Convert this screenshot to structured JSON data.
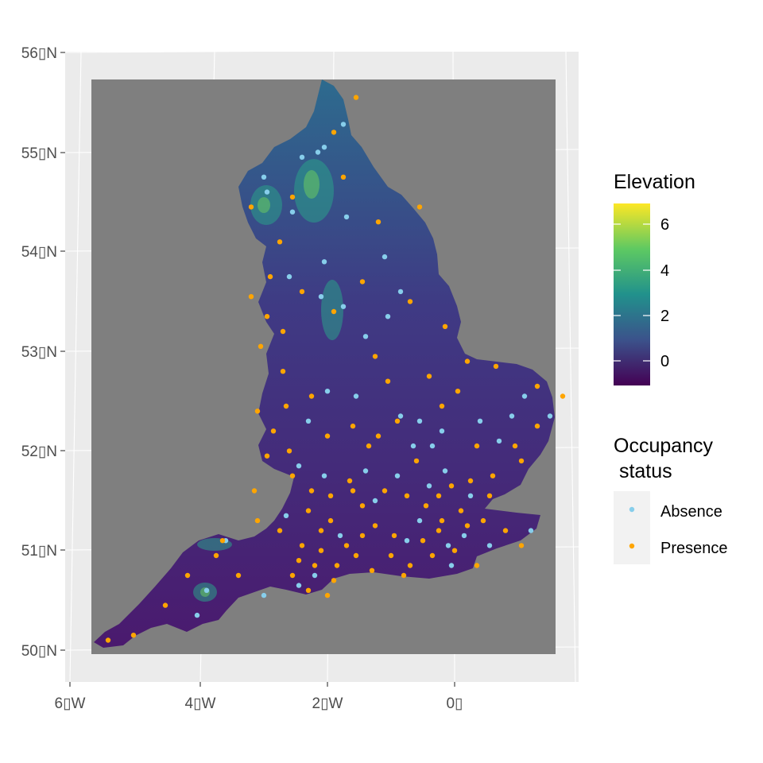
{
  "colors": {
    "panel_background": "#ebebeb",
    "grid": "#ffffff",
    "raster_nodata": "#7f7f7f",
    "absence": "#87ceeb",
    "presence": "#ffa500",
    "axis_text": "#4d4d4d",
    "legend_key_background": "#f2f2f2"
  },
  "axes": {
    "lat_ticks": [
      "56▯N",
      "55▯N",
      "54▯N",
      "53▯N",
      "52▯N",
      "51▯N",
      "50▯N"
    ],
    "lon_ticks": [
      "6▯W",
      "4▯W",
      "2▯W",
      "0▯"
    ]
  },
  "elevation_legend": {
    "title": "Elevation",
    "tick_labels": [
      "6",
      "4",
      "2",
      "0"
    ],
    "range": [
      -1,
      7
    ],
    "palette": "viridis",
    "gradient_stops": [
      "#440154",
      "#3b528b",
      "#21918c",
      "#5ec962",
      "#fde725"
    ]
  },
  "occupancy_legend": {
    "title_line1": "Occupancy",
    "title_line2": " status",
    "items": [
      {
        "label": "Absence",
        "color": "#87ceeb"
      },
      {
        "label": "Presence",
        "color": "#ffa500"
      }
    ]
  },
  "occurrence_points": {
    "absence": [
      [
        -1.75,
        55.28
      ],
      [
        -2.05,
        55.05
      ],
      [
        -2.15,
        55.0
      ],
      [
        -2.4,
        54.95
      ],
      [
        -3.0,
        54.75
      ],
      [
        -2.95,
        54.6
      ],
      [
        -2.55,
        54.4
      ],
      [
        -1.7,
        54.35
      ],
      [
        -2.05,
        53.9
      ],
      [
        -2.6,
        53.75
      ],
      [
        -2.1,
        53.55
      ],
      [
        -1.75,
        53.45
      ],
      [
        -1.4,
        53.15
      ],
      [
        -1.05,
        53.35
      ],
      [
        -0.85,
        53.6
      ],
      [
        -1.1,
        53.95
      ],
      [
        -2.0,
        52.6
      ],
      [
        -2.3,
        52.3
      ],
      [
        -1.55,
        52.55
      ],
      [
        -0.85,
        52.35
      ],
      [
        -0.55,
        52.3
      ],
      [
        -0.2,
        52.2
      ],
      [
        0.4,
        52.3
      ],
      [
        0.9,
        52.35
      ],
      [
        1.1,
        52.55
      ],
      [
        -0.35,
        52.05
      ],
      [
        -0.15,
        51.8
      ],
      [
        -0.4,
        51.65
      ],
      [
        -0.9,
        51.75
      ],
      [
        -1.4,
        51.8
      ],
      [
        -2.05,
        51.75
      ],
      [
        -2.45,
        51.85
      ],
      [
        -0.55,
        51.3
      ],
      [
        -0.75,
        51.1
      ],
      [
        -0.1,
        51.05
      ],
      [
        0.15,
        51.15
      ],
      [
        0.55,
        51.05
      ],
      [
        1.2,
        51.2
      ],
      [
        -2.45,
        50.65
      ],
      [
        -3.0,
        50.55
      ],
      [
        -3.9,
        50.6
      ],
      [
        -4.05,
        50.35
      ],
      [
        -3.6,
        51.1
      ],
      [
        -2.65,
        51.35
      ],
      [
        1.5,
        52.35
      ],
      [
        0.25,
        51.55
      ],
      [
        -1.25,
        51.5
      ],
      [
        -0.05,
        50.85
      ],
      [
        -2.2,
        50.75
      ],
      [
        -1.8,
        51.15
      ],
      [
        0.7,
        52.1
      ],
      [
        -0.65,
        52.05
      ]
    ],
    "presence": [
      [
        -1.55,
        55.55
      ],
      [
        -1.9,
        55.2
      ],
      [
        -1.75,
        54.75
      ],
      [
        -2.55,
        54.55
      ],
      [
        -3.2,
        54.45
      ],
      [
        -2.75,
        54.1
      ],
      [
        -1.2,
        54.3
      ],
      [
        -0.55,
        54.45
      ],
      [
        -2.9,
        53.75
      ],
      [
        -2.4,
        53.6
      ],
      [
        -1.9,
        53.4
      ],
      [
        -1.45,
        53.7
      ],
      [
        -0.7,
        53.5
      ],
      [
        -0.15,
        53.25
      ],
      [
        -2.95,
        53.35
      ],
      [
        -3.05,
        53.05
      ],
      [
        -2.7,
        52.8
      ],
      [
        -2.25,
        52.55
      ],
      [
        -1.25,
        52.95
      ],
      [
        -0.4,
        52.75
      ],
      [
        0.2,
        52.9
      ],
      [
        0.65,
        52.85
      ],
      [
        1.3,
        52.65
      ],
      [
        1.7,
        52.55
      ],
      [
        -2.65,
        52.45
      ],
      [
        -2.0,
        52.15
      ],
      [
        -1.6,
        52.25
      ],
      [
        -1.2,
        52.15
      ],
      [
        -0.9,
        52.3
      ],
      [
        -0.2,
        52.45
      ],
      [
        0.35,
        52.05
      ],
      [
        0.95,
        52.05
      ],
      [
        1.3,
        52.25
      ],
      [
        -2.95,
        51.95
      ],
      [
        -2.55,
        51.75
      ],
      [
        -2.25,
        51.6
      ],
      [
        -1.95,
        51.55
      ],
      [
        -1.65,
        51.7
      ],
      [
        -1.45,
        51.45
      ],
      [
        -1.1,
        51.6
      ],
      [
        -0.75,
        51.55
      ],
      [
        -0.45,
        51.45
      ],
      [
        -0.2,
        51.3
      ],
      [
        0.1,
        51.4
      ],
      [
        0.45,
        51.3
      ],
      [
        0.8,
        51.2
      ],
      [
        1.05,
        51.05
      ],
      [
        -3.1,
        51.3
      ],
      [
        -2.75,
        51.2
      ],
      [
        -2.4,
        51.05
      ],
      [
        -2.1,
        51.0
      ],
      [
        -1.85,
        50.85
      ],
      [
        -1.55,
        50.95
      ],
      [
        -1.3,
        50.8
      ],
      [
        -1.0,
        50.95
      ],
      [
        -0.7,
        50.85
      ],
      [
        -0.35,
        50.95
      ],
      [
        0.0,
        51.0
      ],
      [
        0.35,
        50.85
      ],
      [
        -2.55,
        50.75
      ],
      [
        -2.3,
        50.6
      ],
      [
        -2.0,
        50.55
      ],
      [
        -3.4,
        50.75
      ],
      [
        -3.75,
        50.95
      ],
      [
        -4.2,
        50.75
      ],
      [
        -4.55,
        50.45
      ],
      [
        -5.05,
        50.15
      ],
      [
        -5.45,
        50.1
      ],
      [
        -3.65,
        51.1
      ],
      [
        -1.95,
        51.3
      ],
      [
        -1.25,
        51.25
      ],
      [
        -0.95,
        51.15
      ],
      [
        -0.5,
        51.1
      ],
      [
        0.25,
        51.7
      ],
      [
        0.55,
        51.55
      ],
      [
        -0.05,
        51.65
      ],
      [
        -0.6,
        51.9
      ],
      [
        -1.35,
        52.05
      ],
      [
        -2.3,
        51.4
      ],
      [
        -2.1,
        51.2
      ],
      [
        -1.7,
        51.05
      ],
      [
        -1.45,
        51.15
      ],
      [
        -0.25,
        51.2
      ],
      [
        0.6,
        51.75
      ],
      [
        1.05,
        51.9
      ],
      [
        -2.85,
        52.2
      ],
      [
        -3.15,
        51.6
      ],
      [
        -2.6,
        52.0
      ],
      [
        -1.05,
        52.7
      ],
      [
        0.05,
        52.6
      ],
      [
        -2.45,
        50.9
      ],
      [
        -2.2,
        50.85
      ],
      [
        -1.9,
        50.7
      ],
      [
        -0.8,
        50.75
      ],
      [
        0.2,
        51.25
      ],
      [
        -3.1,
        52.4
      ],
      [
        -2.7,
        53.2
      ],
      [
        -3.2,
        53.55
      ],
      [
        -0.25,
        51.55
      ],
      [
        -1.6,
        51.6
      ]
    ]
  }
}
